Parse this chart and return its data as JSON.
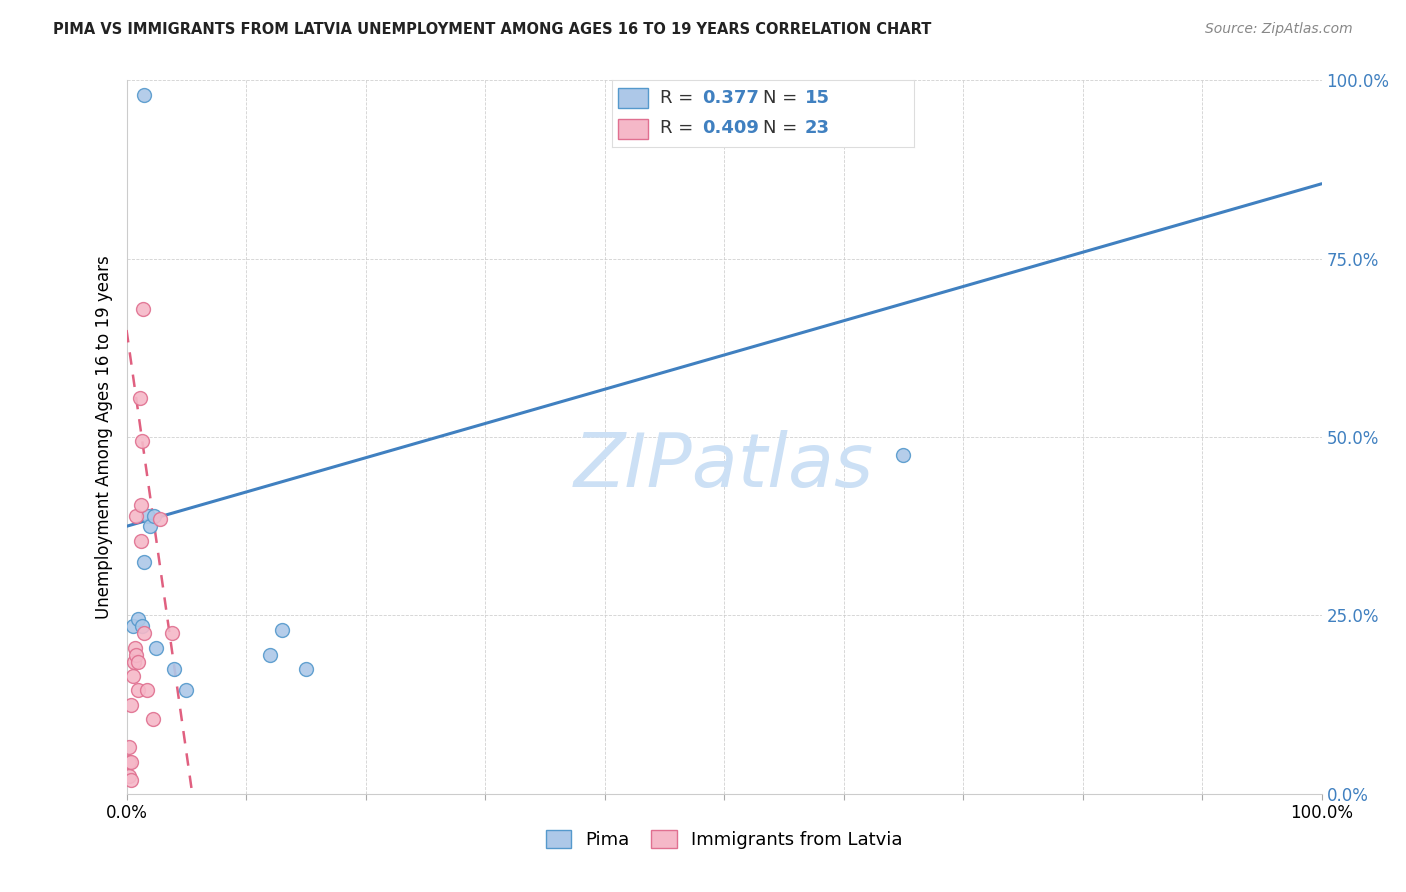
{
  "title": "PIMA VS IMMIGRANTS FROM LATVIA UNEMPLOYMENT AMONG AGES 16 TO 19 YEARS CORRELATION CHART",
  "source": "Source: ZipAtlas.com",
  "ylabel": "Unemployment Among Ages 16 to 19 years",
  "r_pima": 0.377,
  "n_pima": 15,
  "r_latvia": 0.409,
  "n_latvia": 23,
  "pima_color": "#adc8e8",
  "pima_edge_color": "#5599cc",
  "latvia_color": "#f5b8c8",
  "latvia_edge_color": "#e07090",
  "trend_pima_color": "#4080c0",
  "trend_latvia_color": "#e06080",
  "watermark_color": "#cce0f5",
  "pima_points_x": [
    0.005,
    0.01,
    0.013,
    0.015,
    0.018,
    0.02,
    0.023,
    0.025,
    0.04,
    0.05,
    0.12,
    0.13,
    0.15,
    0.65,
    0.015
  ],
  "pima_points_y": [
    0.235,
    0.245,
    0.235,
    0.325,
    0.39,
    0.375,
    0.39,
    0.205,
    0.175,
    0.145,
    0.195,
    0.23,
    0.175,
    0.475,
    0.98
  ],
  "latvia_points_x": [
    0.002,
    0.002,
    0.002,
    0.004,
    0.004,
    0.004,
    0.005,
    0.006,
    0.007,
    0.008,
    0.008,
    0.01,
    0.01,
    0.011,
    0.012,
    0.012,
    0.013,
    0.014,
    0.015,
    0.017,
    0.022,
    0.028,
    0.038
  ],
  "latvia_points_y": [
    0.025,
    0.045,
    0.065,
    0.02,
    0.045,
    0.125,
    0.165,
    0.185,
    0.205,
    0.195,
    0.39,
    0.145,
    0.185,
    0.555,
    0.355,
    0.405,
    0.495,
    0.68,
    0.225,
    0.145,
    0.105,
    0.385,
    0.225
  ],
  "pima_trend_x": [
    0.0,
    1.0
  ],
  "pima_trend_y": [
    0.375,
    0.855
  ],
  "latvia_trend_x": [
    0.0,
    0.055
  ],
  "latvia_trend_y": [
    0.65,
    0.0
  ],
  "marker_size": 100,
  "legend_labels": [
    "Pima",
    "Immigrants from Latvia"
  ],
  "ytick_labels": [
    "0.0%",
    "25.0%",
    "50.0%",
    "75.0%",
    "100.0%"
  ],
  "ytick_values": [
    0.0,
    0.25,
    0.5,
    0.75,
    1.0
  ],
  "xtick_values": [
    0.0,
    0.1,
    0.2,
    0.3,
    0.4,
    0.5,
    0.6,
    0.7,
    0.8,
    0.9,
    1.0
  ],
  "xlim": [
    0.0,
    1.0
  ],
  "ylim": [
    0.0,
    1.0
  ]
}
